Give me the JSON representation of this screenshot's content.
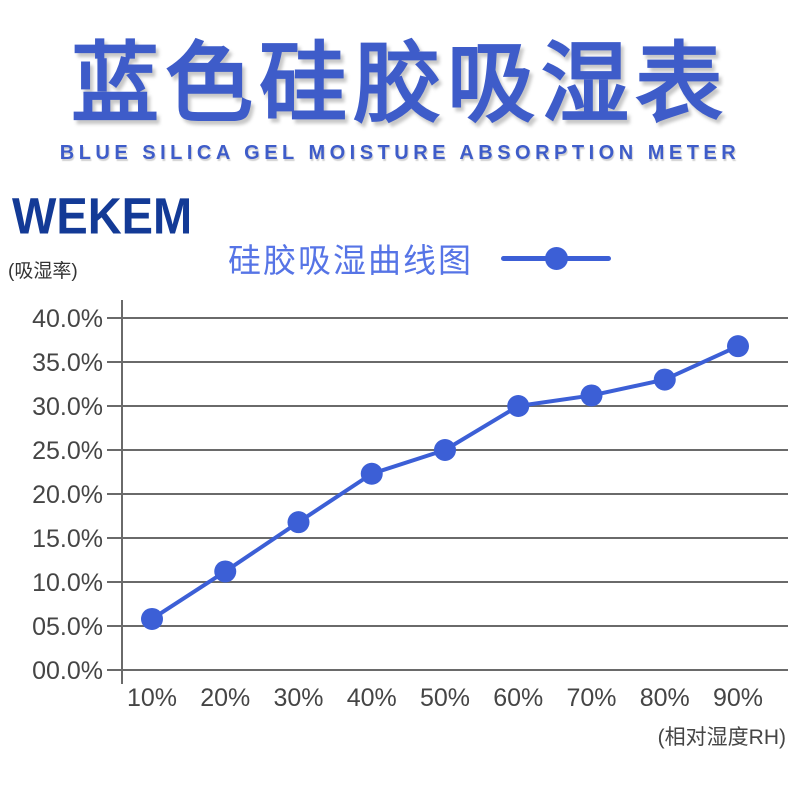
{
  "header": {
    "title": "蓝色硅胶吸湿表",
    "subtitle": "BLUE SILICA GEL MOISTURE ABSORPTION METER"
  },
  "logo": {
    "text": "WEKEM"
  },
  "legend": {
    "label": "硅胶吸湿曲线图"
  },
  "axes": {
    "y_unit_label": "(吸湿率)",
    "x_unit_label": "(相对湿度RH)"
  },
  "chart_data": {
    "type": "line",
    "title": "硅胶吸湿曲线图",
    "categories": [
      "10%",
      "20%",
      "30%",
      "40%",
      "50%",
      "60%",
      "70%",
      "80%",
      "90%"
    ],
    "values": [
      5.8,
      11.2,
      16.8,
      22.3,
      25.0,
      30.0,
      31.2,
      33.0,
      36.8
    ],
    "xlabel": "(相对湿度RH)",
    "ylabel": "(吸湿率)",
    "y_ticks": [
      "40.0%",
      "35.0%",
      "30.0%",
      "25.0%",
      "20.0%",
      "15.0%",
      "10.0%",
      "05.0%",
      "00.0%"
    ],
    "y_tick_values": [
      40,
      35,
      30,
      25,
      20,
      15,
      10,
      5,
      0
    ],
    "ylim": [
      0,
      42
    ],
    "grid": "horizontal-only",
    "legend_position": "top-center",
    "marker": "circle"
  },
  "colors": {
    "title_blue": "#3e5cc9",
    "logo_navy": "#133a96",
    "legend_blue": "#5674e6",
    "line_blue": "#3c5fd6",
    "grid_gray": "#6a6a6a",
    "tick_label_gray": "#454545",
    "background": "#ffffff"
  }
}
